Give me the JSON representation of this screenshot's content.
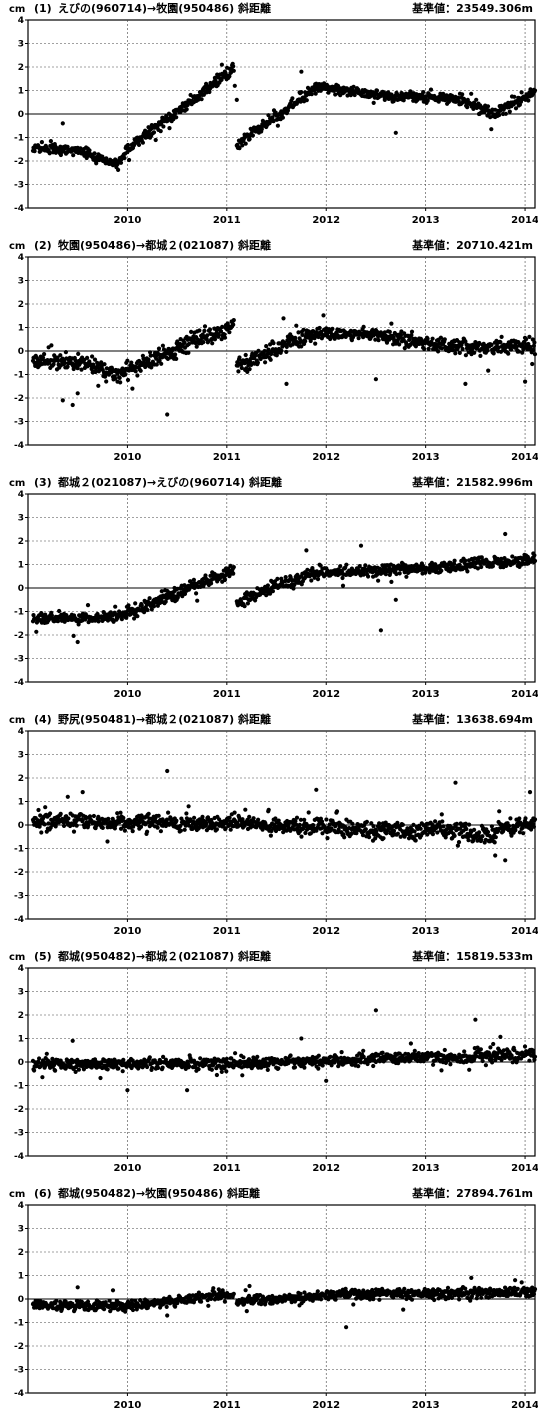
{
  "chart_data": [
    {
      "type": "scatter",
      "label": "(1)",
      "title": "えびの(960714)→牧園(950486)  斜距離",
      "reference": "基準値：23549.306m",
      "ylabel": "cm",
      "ylim": [
        -4,
        4
      ],
      "yticks": [
        -4,
        -3,
        -2,
        -1,
        0,
        1,
        2,
        3,
        4
      ],
      "xticks": [
        "2010",
        "2011",
        "2012",
        "2013",
        "2014"
      ],
      "xlim": [
        2009.0,
        2014.1
      ],
      "grid": true,
      "segments": [
        {
          "x": [
            2009.05,
            2009.5
          ],
          "y": [
            -1.45,
            -1.55
          ],
          "noise": 0.12
        },
        {
          "x": [
            2009.5,
            2009.9
          ],
          "y": [
            -1.55,
            -2.15
          ],
          "noise": 0.12
        },
        {
          "x": [
            2009.9,
            2010.0
          ],
          "y": [
            -2.15,
            -1.55
          ],
          "noise": 0.15
        },
        {
          "x": [
            2010.0,
            2011.07
          ],
          "y": [
            -1.5,
            1.9
          ],
          "noise": 0.15
        },
        {
          "x": [
            2011.1,
            2011.9
          ],
          "y": [
            -1.3,
            1.15
          ],
          "noise": 0.15
        },
        {
          "x": [
            2011.9,
            2012.55
          ],
          "y": [
            1.15,
            0.8
          ],
          "noise": 0.12
        },
        {
          "x": [
            2012.55,
            2013.3
          ],
          "y": [
            0.8,
            0.65
          ],
          "noise": 0.12
        },
        {
          "x": [
            2013.3,
            2013.7
          ],
          "y": [
            0.65,
            0.0
          ],
          "noise": 0.15
        },
        {
          "x": [
            2013.7,
            2014.1
          ],
          "y": [
            0.0,
            1.0
          ],
          "noise": 0.15
        }
      ],
      "outliers": [
        [
          2010.95,
          2.1
        ],
        [
          2011.08,
          1.2
        ],
        [
          2011.1,
          0.6
        ],
        [
          2011.75,
          1.8
        ],
        [
          2012.7,
          -0.8
        ],
        [
          2009.35,
          -0.4
        ]
      ]
    },
    {
      "type": "scatter",
      "label": "(2)",
      "title": "牧園(950486)→都城２(021087)  斜距離",
      "reference": "基準値：20710.421m",
      "ylabel": "cm",
      "ylim": [
        -4,
        4
      ],
      "yticks": [
        -4,
        -3,
        -2,
        -1,
        0,
        1,
        2,
        3,
        4
      ],
      "xticks": [
        "2010",
        "2011",
        "2012",
        "2013",
        "2014"
      ],
      "xlim": [
        2009.0,
        2014.1
      ],
      "grid": true,
      "segments": [
        {
          "x": [
            2009.05,
            2009.6
          ],
          "y": [
            -0.4,
            -0.5
          ],
          "noise": 0.2
        },
        {
          "x": [
            2009.6,
            2009.9
          ],
          "y": [
            -0.5,
            -1.0
          ],
          "noise": 0.2
        },
        {
          "x": [
            2009.9,
            2011.07
          ],
          "y": [
            -1.0,
            1.1
          ],
          "noise": 0.22
        },
        {
          "x": [
            2011.1,
            2011.9
          ],
          "y": [
            -0.6,
            0.75
          ],
          "noise": 0.22
        },
        {
          "x": [
            2011.9,
            2012.6
          ],
          "y": [
            0.75,
            0.7
          ],
          "noise": 0.15
        },
        {
          "x": [
            2012.6,
            2013.5
          ],
          "y": [
            0.6,
            0.1
          ],
          "noise": 0.2
        },
        {
          "x": [
            2013.5,
            2014.1
          ],
          "y": [
            0.1,
            0.25
          ],
          "noise": 0.22
        }
      ],
      "outliers": [
        [
          2009.35,
          -2.1
        ],
        [
          2009.45,
          -2.3
        ],
        [
          2009.5,
          -1.8
        ],
        [
          2010.4,
          -2.7
        ],
        [
          2010.05,
          -1.6
        ],
        [
          2011.6,
          -1.4
        ],
        [
          2012.5,
          -1.2
        ],
        [
          2013.4,
          -1.4
        ],
        [
          2014.0,
          -1.3
        ]
      ]
    },
    {
      "type": "scatter",
      "label": "(3)",
      "title": "都城２(021087)→えびの(960714)  斜距離",
      "reference": "基準値：21582.996m",
      "ylabel": "cm",
      "ylim": [
        -4,
        4
      ],
      "yticks": [
        -4,
        -3,
        -2,
        -1,
        0,
        1,
        2,
        3,
        4
      ],
      "xticks": [
        "2010",
        "2011",
        "2012",
        "2013",
        "2014"
      ],
      "xlim": [
        2009.0,
        2014.1
      ],
      "grid": true,
      "segments": [
        {
          "x": [
            2009.05,
            2009.9
          ],
          "y": [
            -1.3,
            -1.25
          ],
          "noise": 0.15
        },
        {
          "x": [
            2009.9,
            2011.07
          ],
          "y": [
            -1.25,
            0.75
          ],
          "noise": 0.18
        },
        {
          "x": [
            2011.1,
            2011.9
          ],
          "y": [
            -0.6,
            0.65
          ],
          "noise": 0.18
        },
        {
          "x": [
            2011.9,
            2012.6
          ],
          "y": [
            0.65,
            0.75
          ],
          "noise": 0.15
        },
        {
          "x": [
            2012.6,
            2014.1
          ],
          "y": [
            0.75,
            1.2
          ],
          "noise": 0.15
        }
      ],
      "outliers": [
        [
          2009.5,
          -2.3
        ],
        [
          2011.8,
          1.6
        ],
        [
          2012.35,
          1.8
        ],
        [
          2012.55,
          -1.8
        ],
        [
          2013.8,
          2.3
        ],
        [
          2012.7,
          -0.5
        ]
      ]
    },
    {
      "type": "scatter",
      "label": "(4)",
      "title": "野尻(950481)→都城２(021087)  斜距離",
      "reference": "基準値：13638.694m",
      "ylabel": "cm",
      "ylim": [
        -4,
        4
      ],
      "yticks": [
        -4,
        -3,
        -2,
        -1,
        0,
        1,
        2,
        3,
        4
      ],
      "xticks": [
        "2010",
        "2011",
        "2012",
        "2013",
        "2014"
      ],
      "xlim": [
        2009.0,
        2014.1
      ],
      "grid": true,
      "segments": [
        {
          "x": [
            2009.05,
            2011.0
          ],
          "y": [
            0.2,
            0.05
          ],
          "noise": 0.2
        },
        {
          "x": [
            2011.0,
            2011.5
          ],
          "y": [
            0.2,
            -0.1
          ],
          "noise": 0.2
        },
        {
          "x": [
            2011.5,
            2013.0
          ],
          "y": [
            -0.05,
            -0.3
          ],
          "noise": 0.22
        },
        {
          "x": [
            2013.0,
            2013.7
          ],
          "y": [
            -0.1,
            -0.5
          ],
          "noise": 0.22
        },
        {
          "x": [
            2013.7,
            2014.1
          ],
          "y": [
            -0.2,
            0.1
          ],
          "noise": 0.22
        }
      ],
      "outliers": [
        [
          2010.4,
          2.3
        ],
        [
          2013.3,
          1.8
        ],
        [
          2009.4,
          1.2
        ],
        [
          2009.55,
          1.4
        ],
        [
          2011.9,
          1.5
        ],
        [
          2013.8,
          -1.5
        ],
        [
          2013.7,
          -1.3
        ],
        [
          2014.05,
          1.4
        ],
        [
          2009.8,
          -0.7
        ]
      ]
    },
    {
      "type": "scatter",
      "label": "(5)",
      "title": "都城(950482)→都城２(021087)  斜距離",
      "reference": "基準値：15819.533m",
      "ylabel": "cm",
      "ylim": [
        -4,
        4
      ],
      "yticks": [
        -4,
        -3,
        -2,
        -1,
        0,
        1,
        2,
        3,
        4
      ],
      "xticks": [
        "2010",
        "2011",
        "2012",
        "2013",
        "2014"
      ],
      "xlim": [
        2009.0,
        2014.1
      ],
      "grid": true,
      "segments": [
        {
          "x": [
            2009.05,
            2011.0
          ],
          "y": [
            -0.1,
            -0.05
          ],
          "noise": 0.15
        },
        {
          "x": [
            2011.0,
            2012.5
          ],
          "y": [
            -0.05,
            0.1
          ],
          "noise": 0.15
        },
        {
          "x": [
            2012.5,
            2013.5
          ],
          "y": [
            0.15,
            0.2
          ],
          "noise": 0.15
        },
        {
          "x": [
            2013.5,
            2014.1
          ],
          "y": [
            0.3,
            0.3
          ],
          "noise": 0.18
        }
      ],
      "outliers": [
        [
          2012.5,
          2.2
        ],
        [
          2013.5,
          1.8
        ],
        [
          2010.0,
          -1.2
        ],
        [
          2010.6,
          -1.2
        ],
        [
          2011.75,
          1.0
        ],
        [
          2009.45,
          0.9
        ],
        [
          2012.0,
          -0.8
        ]
      ]
    },
    {
      "type": "scatter",
      "label": "(6)",
      "title": "都城(950482)→牧園(950486)  斜距離",
      "reference": "基準値：27894.761m",
      "ylabel": "cm",
      "ylim": [
        -4,
        4
      ],
      "yticks": [
        -4,
        -3,
        -2,
        -1,
        0,
        1,
        2,
        3,
        4
      ],
      "xticks": [
        "2010",
        "2011",
        "2012",
        "2013",
        "2014"
      ],
      "xlim": [
        2009.0,
        2014.1
      ],
      "grid": true,
      "segments": [
        {
          "x": [
            2009.05,
            2010.0
          ],
          "y": [
            -0.25,
            -0.3
          ],
          "noise": 0.12
        },
        {
          "x": [
            2010.0,
            2011.07
          ],
          "y": [
            -0.3,
            0.2
          ],
          "noise": 0.12
        },
        {
          "x": [
            2011.1,
            2012.2
          ],
          "y": [
            -0.1,
            0.2
          ],
          "noise": 0.12
        },
        {
          "x": [
            2012.2,
            2014.1
          ],
          "y": [
            0.2,
            0.3
          ],
          "noise": 0.14
        }
      ],
      "outliers": [
        [
          2012.2,
          -1.2
        ],
        [
          2013.9,
          0.8
        ],
        [
          2009.5,
          0.5
        ],
        [
          2010.4,
          -0.7
        ]
      ]
    }
  ]
}
